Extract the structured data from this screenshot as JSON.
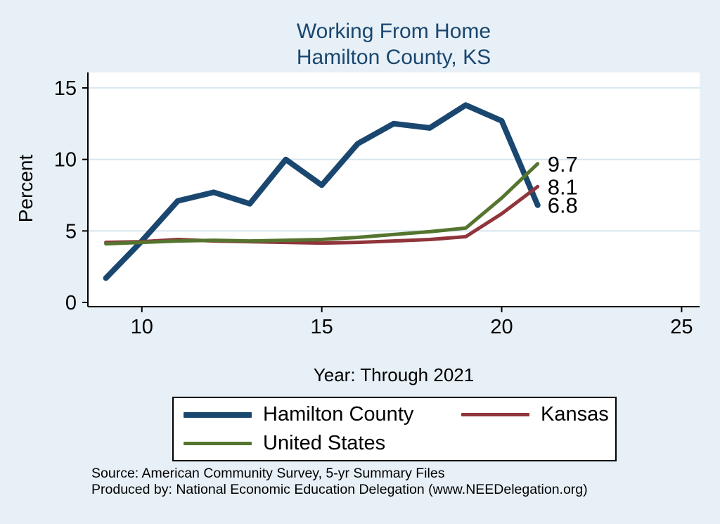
{
  "title": {
    "line1": "Working From Home",
    "line2": "Hamilton County, KS"
  },
  "source": {
    "line1": "Source: American Community Survey, 5-yr Summary Files",
    "line2": "Produced by: National Economic Education Delegation (www.NEEDelegation.org)"
  },
  "colors": {
    "background": "#e7f0f6",
    "plot_background": "#ffffff",
    "title_text": "#1a476f",
    "gridline": "#d4e4ee",
    "axis": "#000000",
    "hamilton_county": "#1a476f",
    "kansas": "#90353b",
    "united_states": "#55752f"
  },
  "chart_data": {
    "type": "line",
    "title": "Working From Home — Hamilton County, KS",
    "xlabel": "Year: Through 2021",
    "ylabel": "Percent",
    "xlim": [
      8.5,
      25.5
    ],
    "ylim": [
      0,
      15
    ],
    "xticks": [
      10,
      15,
      20,
      25
    ],
    "yticks": [
      0,
      5,
      10,
      15
    ],
    "grid": "horizontal",
    "legend_position": "bottom",
    "x": [
      9,
      10,
      11,
      12,
      13,
      14,
      15,
      16,
      17,
      18,
      19,
      20,
      21
    ],
    "series": [
      {
        "name": "Hamilton County",
        "color": "#1a476f",
        "line_width": 8,
        "values": [
          1.7,
          4.3,
          7.1,
          7.7,
          6.9,
          10.0,
          8.2,
          11.1,
          12.5,
          12.2,
          13.8,
          12.7,
          6.8
        ],
        "end_label": "6.8"
      },
      {
        "name": "Kansas",
        "color": "#90353b",
        "line_width": 5,
        "values": [
          4.2,
          4.25,
          4.4,
          4.3,
          4.25,
          4.2,
          4.15,
          4.2,
          4.3,
          4.4,
          4.6,
          6.2,
          8.1
        ],
        "end_label": "8.1"
      },
      {
        "name": "United States",
        "color": "#55752f",
        "line_width": 5,
        "values": [
          4.1,
          4.2,
          4.3,
          4.35,
          4.3,
          4.35,
          4.4,
          4.55,
          4.75,
          4.95,
          5.2,
          7.3,
          9.7
        ],
        "end_label": "9.7"
      }
    ]
  }
}
